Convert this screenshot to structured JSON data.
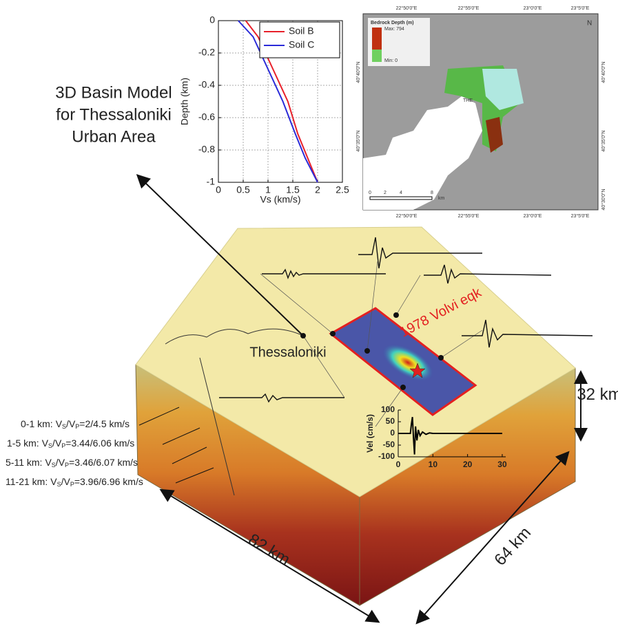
{
  "chart_data": [
    {
      "type": "line",
      "xlabel": "Vs (km/s)",
      "ylabel": "Depth (km)",
      "xlim": [
        0,
        2.5
      ],
      "ylim": [
        -1,
        0
      ],
      "xticks": [
        0,
        0.5,
        1,
        1.5,
        2,
        2.5
      ],
      "yticks": [
        0,
        -0.2,
        -0.4,
        -0.6,
        -0.8,
        -1
      ],
      "grid": true,
      "legend": "upper right",
      "series": [
        {
          "name": "Soil B",
          "color": "#e8202a",
          "x": [
            0.55,
            0.8,
            1.1,
            1.4,
            1.6,
            1.8,
            2.0
          ],
          "values": [
            0,
            -0.1,
            -0.3,
            -0.5,
            -0.7,
            -0.85,
            -1
          ]
        },
        {
          "name": "Soil C",
          "color": "#2a2ad8",
          "x": [
            0.4,
            0.7,
            1.0,
            1.3,
            1.55,
            1.75,
            2.0
          ],
          "values": [
            0,
            -0.1,
            -0.3,
            -0.5,
            -0.7,
            -0.85,
            -1
          ]
        }
      ]
    },
    {
      "type": "line",
      "ylabel": "Vel (cm/s)",
      "xlim": [
        0,
        31
      ],
      "ylim": [
        -100,
        100
      ],
      "xticks": [
        0,
        10,
        20,
        30
      ],
      "yticks": [
        100,
        50,
        0,
        -50,
        -100
      ],
      "grid": false,
      "color": "#000000",
      "x": [
        0,
        3.5,
        3.8,
        4.1,
        4.4,
        4.7,
        5,
        5.4,
        5.8,
        6.3,
        7,
        8,
        9,
        10,
        30
      ],
      "values": [
        0,
        0,
        40,
        70,
        -20,
        -90,
        30,
        -30,
        15,
        -10,
        6,
        -4,
        2,
        0,
        0
      ]
    }
  ],
  "diagram": {
    "title": [
      "3D Basin Model",
      "for Thessaloniki",
      "Urban Area"
    ],
    "city": "Thessaloniki",
    "event": "1978 Volvi eqk",
    "depth": "32 km",
    "length": "82 km",
    "width": "64 km",
    "symbol": {
      "v": "V",
      "s": "S",
      "slash": "/",
      "p": "P"
    },
    "layers": [
      {
        "range": "0-1 km:",
        "speeds": "=2/4.5 km/s"
      },
      {
        "range": "1-5 km:",
        "speeds": "=3.44/6.06 km/s"
      },
      {
        "range": "5-11 km:",
        "speeds": "=3.46/6.07 km/s"
      },
      {
        "range": "11-21 km:",
        "speeds": "=3.96/6.96 km/s"
      }
    ]
  },
  "map": {
    "title": "Bedrock Depth (m)",
    "max": "Max: 794",
    "min": "Min: 0",
    "city": "THE",
    "north": "N",
    "scale": [
      "0",
      "2",
      "4",
      "8",
      "km"
    ],
    "lon": [
      "22°50'0\"E",
      "22°55'0\"E",
      "23°0'0\"E",
      "23°5'0\"E"
    ],
    "lat_left": [
      "40°40'0\"N",
      "40°35'0\"N"
    ],
    "lat_right": [
      "40°40'0\"N",
      "40°35'0\"N",
      "40°30'0\"N"
    ]
  }
}
